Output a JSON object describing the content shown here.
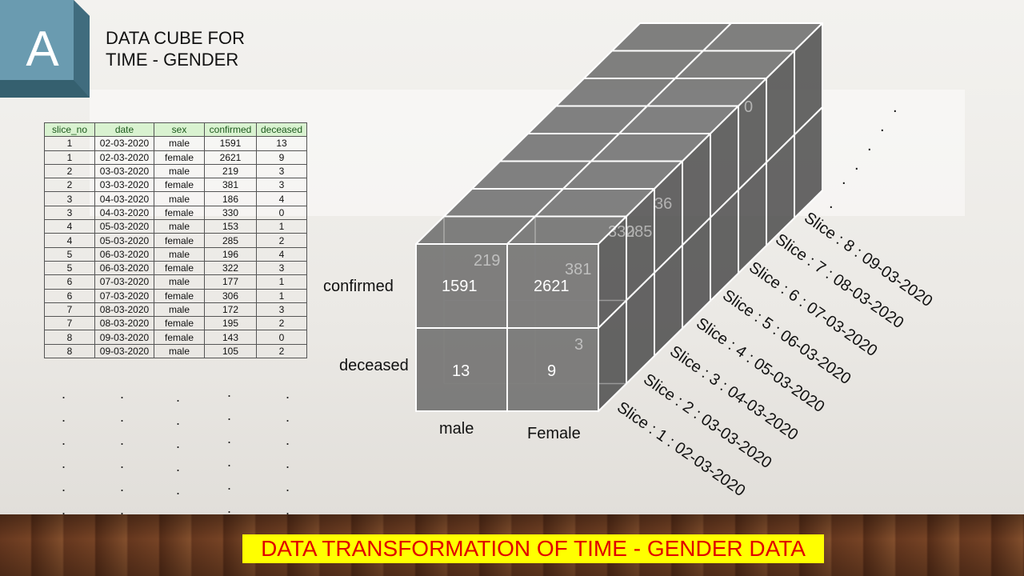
{
  "badge": {
    "letter": "A"
  },
  "title": {
    "line1": "DATA CUBE FOR",
    "line2": "TIME - GENDER"
  },
  "table": {
    "headers": [
      "slice_no",
      "date",
      "sex",
      "confirmed",
      "deceased"
    ],
    "rows": [
      [
        "1",
        "02-03-2020",
        "male",
        "1591",
        "13"
      ],
      [
        "1",
        "02-03-2020",
        "female",
        "2621",
        "9"
      ],
      [
        "2",
        "03-03-2020",
        "male",
        "219",
        "3"
      ],
      [
        "2",
        "03-03-2020",
        "female",
        "381",
        "3"
      ],
      [
        "3",
        "04-03-2020",
        "male",
        "186",
        "4"
      ],
      [
        "3",
        "04-03-2020",
        "female",
        "330",
        "0"
      ],
      [
        "4",
        "05-03-2020",
        "male",
        "153",
        "1"
      ],
      [
        "4",
        "05-03-2020",
        "female",
        "285",
        "2"
      ],
      [
        "5",
        "06-03-2020",
        "male",
        "196",
        "4"
      ],
      [
        "5",
        "06-03-2020",
        "female",
        "322",
        "3"
      ],
      [
        "6",
        "07-03-2020",
        "male",
        "177",
        "1"
      ],
      [
        "6",
        "07-03-2020",
        "female",
        "306",
        "1"
      ],
      [
        "7",
        "08-03-2020",
        "male",
        "172",
        "3"
      ],
      [
        "7",
        "08-03-2020",
        "female",
        "195",
        "2"
      ],
      [
        "8",
        "09-03-2020",
        "female",
        "143",
        "0"
      ],
      [
        "8",
        "09-03-2020",
        "male",
        "105",
        "2"
      ]
    ]
  },
  "cube": {
    "row_labels": [
      "confirmed",
      "deceased"
    ],
    "col_labels": [
      "male",
      "Female"
    ],
    "front_values": {
      "confirmed_male": "1591",
      "confirmed_female": "2621",
      "deceased_male": "13",
      "deceased_female": "9"
    },
    "back_values": [
      "219",
      "381",
      "3",
      "330",
      "285",
      "36",
      "0"
    ],
    "slice_labels": [
      "Slice : 1 : 02-03-2020",
      "Slice : 2 : 03-03-2020",
      "Slice : 3 : 04-03-2020",
      "Slice : 4 : 05-03-2020",
      "Slice : 5 : 06-03-2020",
      "Slice : 6 : 07-03-2020",
      "Slice : 7 : 08-03-2020",
      "Slice : 8 : 09-03-2020"
    ]
  },
  "banner": {
    "text": "DATA TRANSFORMATION OF TIME - GENDER DATA"
  },
  "colors": {
    "banner_bg": "#ffff00",
    "banner_text": "#e00000",
    "table_header_bg": "#d9f2d0",
    "badge": "#5f8fa0"
  }
}
